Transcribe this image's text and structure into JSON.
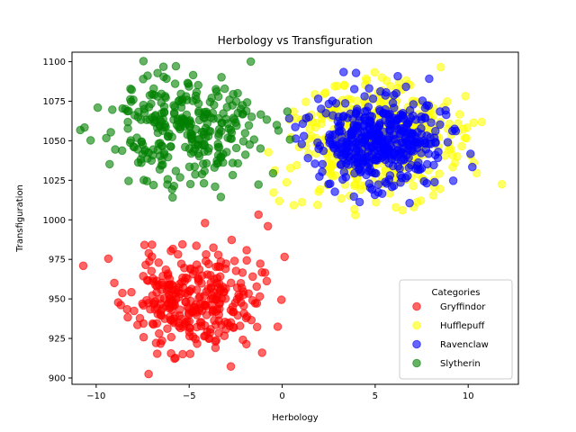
{
  "chart_data": {
    "type": "scatter",
    "title": "Herbology vs Transfiguration",
    "xlabel": "Herbology",
    "ylabel": "Transfiguration",
    "xlim": [
      -11.3,
      12.7
    ],
    "ylim": [
      896,
      1106
    ],
    "xticks": [
      -10,
      -5,
      0,
      5,
      10
    ],
    "yticks": [
      900,
      925,
      950,
      975,
      1000,
      1025,
      1050,
      1075,
      1100
    ],
    "grid": false,
    "legend": {
      "title": "Categories",
      "placement": "lower-right"
    },
    "series": [
      {
        "name": "Gryffindor",
        "color": "#ff0000",
        "center": [
          -4.8,
          948
        ],
        "spread": [
          1.7,
          16
        ],
        "count": 320,
        "seed": 11
      },
      {
        "name": "Hufflepuff",
        "color": "#ffff00",
        "center": [
          5.0,
          1050
        ],
        "spread": [
          2.0,
          17
        ],
        "count": 530,
        "seed": 23
      },
      {
        "name": "Ravenclaw",
        "color": "#0000ff",
        "center": [
          5.3,
          1050
        ],
        "spread": [
          1.7,
          14
        ],
        "count": 440,
        "seed": 37
      },
      {
        "name": "Slytherin",
        "color": "#008000",
        "center": [
          -5.4,
          1055
        ],
        "spread": [
          2.0,
          17
        ],
        "count": 300,
        "seed": 51
      }
    ]
  }
}
